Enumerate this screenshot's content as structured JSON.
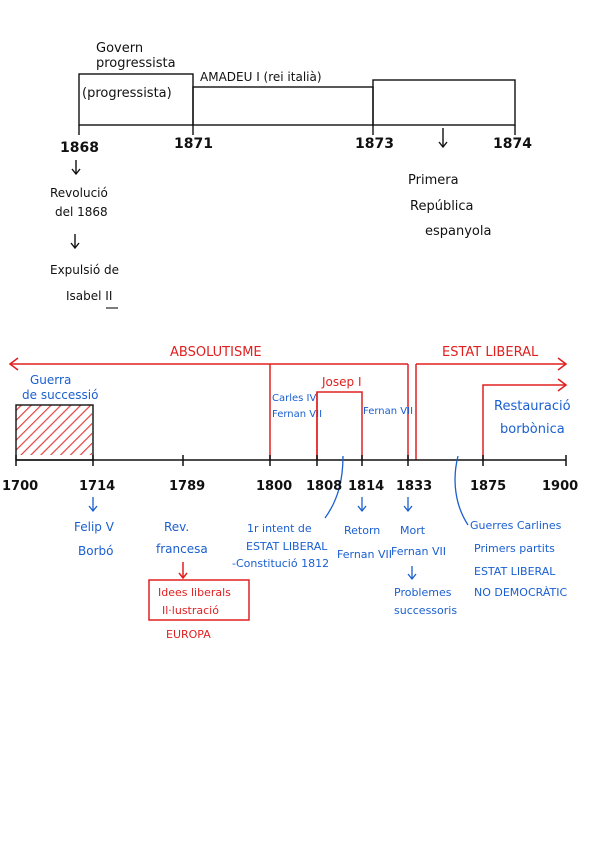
{
  "colors": {
    "ink": "#111111",
    "red": "#e02020",
    "blue": "#1a5fd0"
  },
  "top_timeline": {
    "govern_label_1": "Govern",
    "govern_label_2": "progressista",
    "box1_text": "(progressista)",
    "amadeu_label": "AMADEU I (rei italià)",
    "years": [
      "1868",
      "1871",
      "1873",
      "1874"
    ],
    "revolucio_1": "Revolució",
    "revolucio_2": "del 1868",
    "expulsio_1": "Expulsió de",
    "expulsio_2": "Isabel II",
    "republica_1": "Primera",
    "republica_2": "República",
    "republica_3": "espanyola"
  },
  "bottom_timeline": {
    "absolutisme": "ABSOLUTISME",
    "estat_liberal": "ESTAT LIBERAL",
    "guerra_1": "Guerra",
    "guerra_2": "de successió",
    "carles_1": "Carles IV",
    "carles_2": "Fernan VII",
    "josep": "Josep I",
    "fernan_vii_box": "Fernan VII",
    "restauracio_1": "Restauració",
    "restauracio_2": "borbònica",
    "years": [
      "1700",
      "1714",
      "1789",
      "1800",
      "1808",
      "1814",
      "1833",
      "1875",
      "1900"
    ],
    "felip_1": "Felip V",
    "felip_2": "Borbó",
    "rev_1": "Rev.",
    "rev_2": "francesa",
    "idees_1": "Idees liberals",
    "idees_2": "Il·lustració",
    "europa": "EUROPA",
    "intent_1": "1r intent de",
    "intent_2": "ESTAT LIBERAL",
    "intent_3": "-Constitució 1812",
    "retorn_1": "Retorn",
    "retorn_2": "Fernan VII",
    "mort_1": "Mort",
    "mort_2": "Fernan VII",
    "problemes_1": "Problemes",
    "problemes_2": "successoris",
    "guerres_1": "Guerres Carlines",
    "guerres_2": "Primers partits",
    "guerres_3": "ESTAT LIBERAL",
    "guerres_4": "NO DEMOCRÀTIC"
  }
}
